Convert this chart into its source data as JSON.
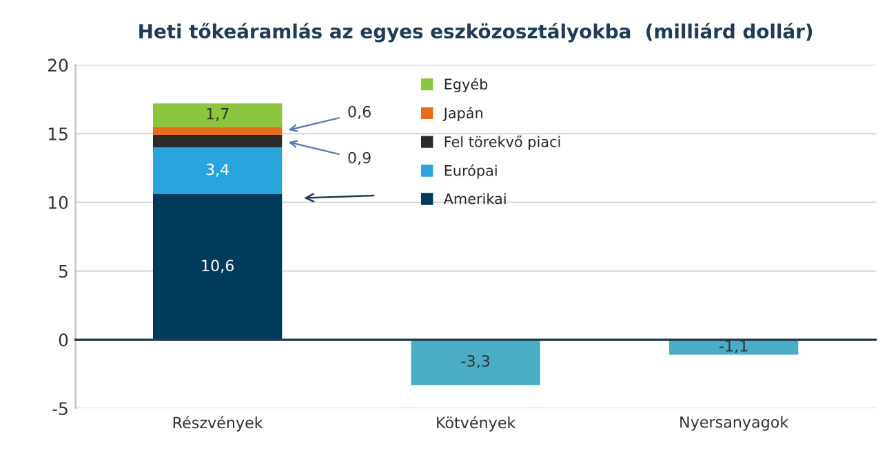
{
  "chart_data": {
    "type": "bar",
    "title": "Heti tőkeáramlás az egyes eszközosztályokba  (milliárd dollár)",
    "categories": [
      "Részvények",
      "Kötvények",
      "Nyersanyagok"
    ],
    "stacked": true,
    "series": [
      {
        "name": "Amerikai",
        "color": "#003b5c",
        "values": [
          10.6,
          null,
          null
        ],
        "value_labels": [
          "10,6",
          null,
          null
        ]
      },
      {
        "name": "Európai",
        "color": "#29a4dc",
        "values": [
          3.4,
          null,
          null
        ],
        "value_labels": [
          "3,4",
          null,
          null
        ]
      },
      {
        "name": "Fel törekvő piaci",
        "color": "#2b2b2b",
        "values": [
          0.9,
          null,
          null
        ],
        "value_labels": [
          "0,9",
          null,
          null
        ]
      },
      {
        "name": "Japán",
        "color": "#e46c1b",
        "values": [
          0.6,
          null,
          null
        ],
        "value_labels": [
          "0,6",
          null,
          null
        ]
      },
      {
        "name": "Egyéb",
        "color": "#8cc63f",
        "values": [
          1.7,
          null,
          null
        ],
        "value_labels": [
          "1,7",
          null,
          null
        ]
      },
      {
        "color": "#4bacc6",
        "values": [
          null,
          -3.3,
          -1.1
        ],
        "value_labels": [
          null,
          "-3,3",
          "-1,1"
        ]
      }
    ],
    "ylim": [
      -5,
      20
    ],
    "yticks": [
      -5,
      0,
      5,
      10,
      15,
      20
    ],
    "grid": "y",
    "legend": "top"
  }
}
